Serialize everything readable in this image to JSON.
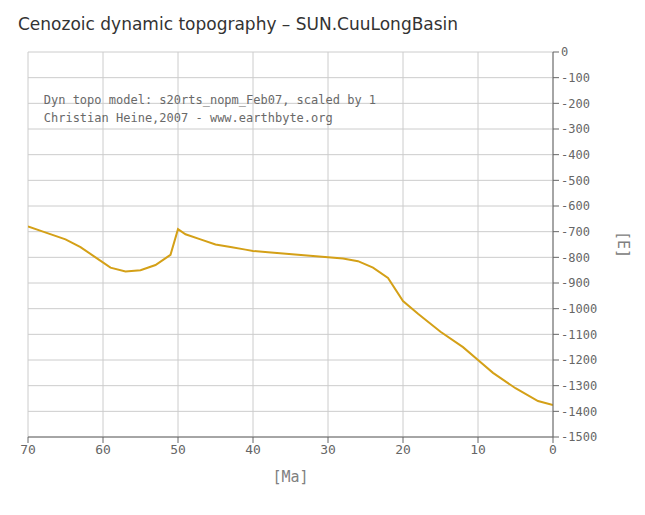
{
  "chart_data": {
    "type": "line",
    "title": "Cenozoic dynamic topography – SUN.CuuLongBasin",
    "x_label": "[Ma]",
    "y_label": "[E]",
    "annotations": [
      "Dyn topo model: s20rts_nopm_Feb07, scaled by 1",
      "Christian Heine,2007 - www.earthbyte.org"
    ],
    "color": "#D4A017",
    "x": [
      70,
      68,
      65,
      63,
      61,
      59,
      57,
      55,
      53,
      51,
      50,
      49,
      47,
      45,
      43,
      41,
      40,
      38,
      36,
      34,
      32,
      30,
      28,
      26,
      24,
      22,
      20,
      18,
      15,
      12,
      10,
      8,
      5,
      2,
      0
    ],
    "values": [
      -680,
      -700,
      -730,
      -760,
      -800,
      -840,
      -855,
      -850,
      -830,
      -790,
      -690,
      -710,
      -730,
      -750,
      -760,
      -770,
      -775,
      -780,
      -785,
      -790,
      -795,
      -800,
      -805,
      -815,
      -840,
      -880,
      -970,
      -1020,
      -1090,
      -1150,
      -1200,
      -1250,
      -1310,
      -1360,
      -1375
    ],
    "xlim": [
      70,
      0
    ],
    "ylim": [
      -1500,
      0
    ],
    "xticks": [
      0,
      10,
      20,
      30,
      40,
      50,
      60,
      70
    ],
    "yticks": [
      0,
      -100,
      -200,
      -300,
      -400,
      -500,
      -600,
      -700,
      -800,
      -900,
      -1000,
      -1100,
      -1200,
      -1300,
      -1400,
      -1500
    ],
    "grid": true
  }
}
